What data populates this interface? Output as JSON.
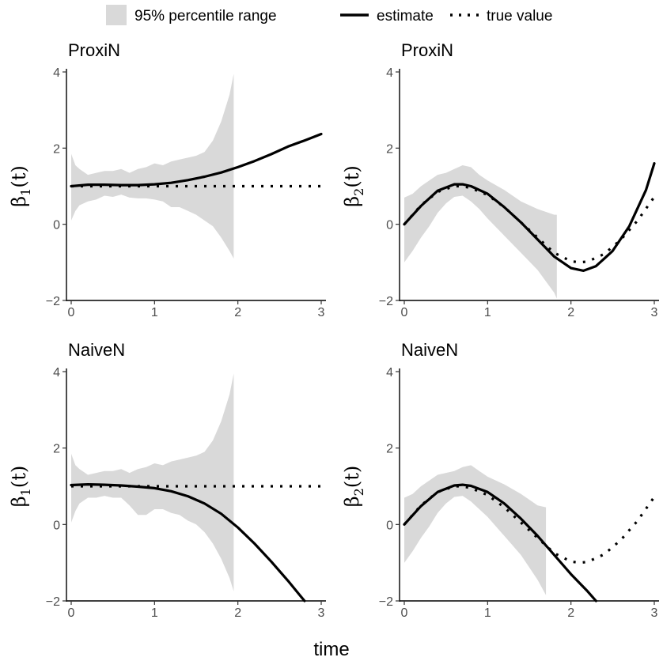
{
  "legend": {
    "band_label": "95% percentile range",
    "estimate_label": "estimate",
    "true_label": "true value"
  },
  "xlabel": "time",
  "chart_data": [
    {
      "type": "line",
      "title": "ProxiN",
      "ylabel": "β1(t)",
      "ylabel_main": "β",
      "ylabel_sub": "1",
      "ylabel_tail": "(t)",
      "xlim": [
        0,
        3
      ],
      "ylim": [
        -2,
        4
      ],
      "xticks": [
        0,
        1,
        2,
        3
      ],
      "yticks": [
        -2,
        0,
        2,
        4
      ],
      "band": {
        "x": [
          0,
          0.05,
          0.1,
          0.2,
          0.3,
          0.4,
          0.5,
          0.6,
          0.7,
          0.8,
          0.9,
          1.0,
          1.1,
          1.2,
          1.3,
          1.4,
          1.5,
          1.6,
          1.7,
          1.8,
          1.9,
          1.95
        ],
        "upper": [
          1.85,
          1.55,
          1.45,
          1.3,
          1.35,
          1.4,
          1.4,
          1.45,
          1.35,
          1.45,
          1.5,
          1.6,
          1.55,
          1.65,
          1.7,
          1.75,
          1.8,
          1.9,
          2.2,
          2.7,
          3.4,
          3.95
        ],
        "lower": [
          0.1,
          0.35,
          0.5,
          0.6,
          0.65,
          0.75,
          0.72,
          0.78,
          0.7,
          0.68,
          0.68,
          0.65,
          0.6,
          0.45,
          0.45,
          0.35,
          0.25,
          0.1,
          -0.05,
          -0.35,
          -0.7,
          -0.9
        ]
      },
      "series": [
        {
          "role": "estimate",
          "x": [
            0,
            0.2,
            0.4,
            0.6,
            0.8,
            1.0,
            1.2,
            1.4,
            1.6,
            1.8,
            2.0,
            2.2,
            2.4,
            2.6,
            2.8,
            3.0
          ],
          "y": [
            1.0,
            1.04,
            1.04,
            1.03,
            1.03,
            1.05,
            1.09,
            1.16,
            1.25,
            1.36,
            1.5,
            1.66,
            1.84,
            2.04,
            2.2,
            2.37
          ]
        },
        {
          "role": "true",
          "x": [
            0,
            0.2,
            0.4,
            0.6,
            0.8,
            1.0,
            1.2,
            1.4,
            1.6,
            1.8,
            2.0,
            2.2,
            2.4,
            2.6,
            2.8,
            3.0
          ],
          "y": [
            1,
            1,
            1,
            1,
            1,
            1,
            1,
            1,
            1,
            1,
            1,
            1,
            1,
            1,
            1,
            1
          ]
        }
      ]
    },
    {
      "type": "line",
      "title": "ProxiN",
      "ylabel": "β2(t)",
      "ylabel_main": "β",
      "ylabel_sub": "2",
      "ylabel_tail": "(t)",
      "xlim": [
        0,
        3
      ],
      "ylim": [
        -2,
        4
      ],
      "xticks": [
        0,
        1,
        2,
        3
      ],
      "yticks": [
        -2,
        0,
        2,
        4
      ],
      "band": {
        "x": [
          0,
          0.1,
          0.2,
          0.3,
          0.4,
          0.5,
          0.6,
          0.7,
          0.8,
          0.9,
          1.0,
          1.2,
          1.4,
          1.6,
          1.8,
          1.83
        ],
        "upper": [
          0.7,
          0.8,
          1.0,
          1.15,
          1.3,
          1.35,
          1.45,
          1.55,
          1.5,
          1.3,
          1.15,
          0.9,
          0.6,
          0.4,
          0.25,
          0.25
        ],
        "lower": [
          -1.0,
          -0.7,
          -0.35,
          -0.05,
          0.3,
          0.55,
          0.72,
          0.75,
          0.6,
          0.4,
          0.15,
          -0.3,
          -0.75,
          -1.2,
          -1.8,
          -1.95
        ]
      },
      "series": [
        {
          "role": "estimate",
          "x": [
            0,
            0.2,
            0.4,
            0.6,
            0.7,
            0.8,
            1.0,
            1.2,
            1.4,
            1.6,
            1.8,
            2.0,
            2.15,
            2.3,
            2.5,
            2.7,
            2.9,
            3.0
          ],
          "y": [
            0.0,
            0.48,
            0.88,
            1.05,
            1.05,
            1.0,
            0.8,
            0.45,
            0.05,
            -0.4,
            -0.85,
            -1.15,
            -1.22,
            -1.1,
            -0.7,
            -0.05,
            0.9,
            1.6
          ]
        },
        {
          "role": "true",
          "x": [
            0,
            0.2,
            0.4,
            0.6,
            0.7,
            0.8,
            1.0,
            1.2,
            1.4,
            1.6,
            1.8,
            2.0,
            2.1,
            2.2,
            2.4,
            2.6,
            2.8,
            3.0
          ],
          "y": [
            0.0,
            0.5,
            0.85,
            1.0,
            1.0,
            0.95,
            0.77,
            0.45,
            0.05,
            -0.35,
            -0.75,
            -0.97,
            -1.0,
            -0.98,
            -0.78,
            -0.4,
            0.1,
            0.72
          ]
        }
      ]
    },
    {
      "type": "line",
      "title": "NaiveN",
      "ylabel": "β1(t)",
      "ylabel_main": "β",
      "ylabel_sub": "1",
      "ylabel_tail": "(t)",
      "xlim": [
        0,
        3
      ],
      "ylim": [
        -2,
        4
      ],
      "xticks": [
        0,
        1,
        2,
        3
      ],
      "yticks": [
        -2,
        0,
        2,
        4
      ],
      "band": {
        "x": [
          0,
          0.05,
          0.1,
          0.2,
          0.3,
          0.4,
          0.5,
          0.6,
          0.7,
          0.8,
          0.9,
          1.0,
          1.1,
          1.2,
          1.3,
          1.4,
          1.5,
          1.6,
          1.7,
          1.8,
          1.9,
          1.95
        ],
        "upper": [
          1.85,
          1.55,
          1.45,
          1.3,
          1.35,
          1.4,
          1.4,
          1.45,
          1.35,
          1.45,
          1.5,
          1.6,
          1.55,
          1.65,
          1.7,
          1.75,
          1.8,
          1.9,
          2.2,
          2.7,
          3.4,
          3.95
        ],
        "lower": [
          0.05,
          0.35,
          0.55,
          0.7,
          0.7,
          0.75,
          0.7,
          0.7,
          0.5,
          0.25,
          0.25,
          0.4,
          0.4,
          0.3,
          0.25,
          0.1,
          0.0,
          -0.2,
          -0.5,
          -0.9,
          -1.4,
          -1.75
        ]
      },
      "series": [
        {
          "role": "estimate",
          "x": [
            0,
            0.2,
            0.4,
            0.6,
            0.8,
            1.0,
            1.2,
            1.4,
            1.6,
            1.8,
            2.0,
            2.2,
            2.4,
            2.6,
            2.8
          ],
          "y": [
            1.03,
            1.05,
            1.04,
            1.02,
            0.99,
            0.95,
            0.87,
            0.74,
            0.55,
            0.28,
            -0.08,
            -0.5,
            -0.97,
            -1.47,
            -2.0
          ]
        },
        {
          "role": "true",
          "x": [
            0,
            0.2,
            0.4,
            0.6,
            0.8,
            1.0,
            1.2,
            1.4,
            1.6,
            1.8,
            2.0,
            2.2,
            2.4,
            2.6,
            2.8,
            3.0
          ],
          "y": [
            1,
            1,
            1,
            1,
            1,
            1,
            1,
            1,
            1,
            1,
            1,
            1,
            1,
            1,
            1,
            1
          ]
        }
      ]
    },
    {
      "type": "line",
      "title": "NaiveN",
      "ylabel": "β2(t)",
      "ylabel_main": "β",
      "ylabel_sub": "2",
      "ylabel_tail": "(t)",
      "xlim": [
        0,
        3
      ],
      "ylim": [
        -2,
        4
      ],
      "xticks": [
        0,
        1,
        2,
        3
      ],
      "yticks": [
        -2,
        0,
        2,
        4
      ],
      "band": {
        "x": [
          0,
          0.1,
          0.2,
          0.3,
          0.4,
          0.5,
          0.6,
          0.7,
          0.8,
          0.9,
          1.0,
          1.2,
          1.4,
          1.6,
          1.7
        ],
        "upper": [
          0.7,
          0.8,
          1.0,
          1.15,
          1.3,
          1.35,
          1.4,
          1.5,
          1.55,
          1.4,
          1.25,
          1.05,
          0.8,
          0.5,
          0.45
        ],
        "lower": [
          -1.0,
          -0.7,
          -0.35,
          -0.05,
          0.3,
          0.55,
          0.72,
          0.75,
          0.6,
          0.4,
          0.2,
          -0.3,
          -0.8,
          -1.45,
          -1.85
        ]
      },
      "series": [
        {
          "role": "estimate",
          "x": [
            0,
            0.2,
            0.4,
            0.6,
            0.7,
            0.8,
            1.0,
            1.2,
            1.4,
            1.6,
            1.8,
            2.0,
            2.2,
            2.3
          ],
          "y": [
            0.0,
            0.48,
            0.85,
            1.02,
            1.04,
            1.01,
            0.85,
            0.55,
            0.15,
            -0.3,
            -0.8,
            -1.3,
            -1.75,
            -2.0
          ]
        },
        {
          "role": "true",
          "x": [
            0,
            0.2,
            0.4,
            0.6,
            0.7,
            0.8,
            1.0,
            1.2,
            1.4,
            1.6,
            1.8,
            2.0,
            2.1,
            2.2,
            2.4,
            2.6,
            2.8,
            3.0
          ],
          "y": [
            0.0,
            0.5,
            0.85,
            1.0,
            1.0,
            0.95,
            0.77,
            0.45,
            0.05,
            -0.35,
            -0.75,
            -0.97,
            -1.0,
            -0.98,
            -0.78,
            -0.4,
            0.1,
            0.72
          ]
        }
      ]
    }
  ]
}
